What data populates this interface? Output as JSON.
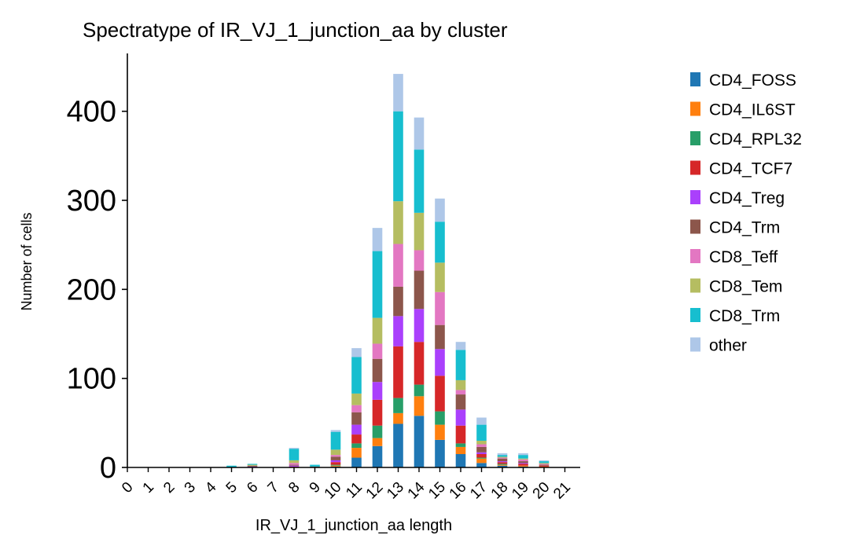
{
  "chart_data": {
    "type": "bar",
    "stacked": true,
    "title": "Spectratype of IR_VJ_1_junction_aa by cluster",
    "xlabel": "IR_VJ_1_junction_aa length",
    "ylabel": "Number of cells",
    "ylim": [
      0,
      465
    ],
    "yticks": [
      0,
      100,
      200,
      300,
      400
    ],
    "grid": false,
    "legend_position": "right",
    "categories": [
      "0",
      "1",
      "2",
      "3",
      "4",
      "5",
      "6",
      "7",
      "8",
      "9",
      "10",
      "11",
      "12",
      "13",
      "14",
      "15",
      "16",
      "17",
      "18",
      "19",
      "20",
      "21"
    ],
    "series": [
      {
        "name": "CD4_FOSS",
        "color": "#1f77b4",
        "values": [
          0,
          0,
          0,
          0,
          0,
          0,
          0,
          0,
          0,
          0,
          1,
          11,
          24,
          49,
          58,
          31,
          15,
          5,
          2,
          1,
          0,
          0
        ]
      },
      {
        "name": "CD4_IL6ST",
        "color": "#ff7f0e",
        "values": [
          0,
          0,
          0,
          0,
          0,
          0,
          0,
          0,
          0,
          0,
          1,
          11,
          9,
          12,
          22,
          17,
          8,
          5,
          1,
          1,
          1,
          0
        ]
      },
      {
        "name": "CD4_RPL32",
        "color": "#279e68",
        "values": [
          0,
          0,
          0,
          0,
          0,
          0,
          0,
          0,
          0,
          0,
          1,
          5,
          14,
          17,
          13,
          15,
          4,
          1,
          1,
          0,
          0,
          0
        ]
      },
      {
        "name": "CD4_TCF7",
        "color": "#d62728",
        "values": [
          0,
          0,
          0,
          0,
          0,
          0,
          0,
          0,
          1,
          0,
          3,
          10,
          29,
          58,
          48,
          40,
          20,
          4,
          2,
          2,
          1,
          0
        ]
      },
      {
        "name": "CD4_Treg",
        "color": "#aa40fc",
        "values": [
          0,
          0,
          0,
          0,
          0,
          0,
          1,
          0,
          1,
          0,
          2,
          11,
          20,
          34,
          37,
          30,
          18,
          2,
          1,
          1,
          0,
          0
        ]
      },
      {
        "name": "CD4_Trm",
        "color": "#8c564b",
        "values": [
          0,
          0,
          0,
          0,
          0,
          0,
          1,
          0,
          1,
          1,
          4,
          14,
          26,
          33,
          43,
          27,
          17,
          6,
          3,
          2,
          1,
          0
        ]
      },
      {
        "name": "CD8_Teff",
        "color": "#e377c2",
        "values": [
          0,
          0,
          0,
          0,
          0,
          0,
          0,
          0,
          2,
          0,
          2,
          8,
          17,
          48,
          23,
          37,
          5,
          3,
          1,
          2,
          1,
          0
        ]
      },
      {
        "name": "CD8_Tem",
        "color": "#b5bd61",
        "values": [
          0,
          0,
          0,
          0,
          0,
          0,
          1,
          0,
          3,
          0,
          6,
          13,
          29,
          48,
          42,
          33,
          11,
          4,
          1,
          1,
          1,
          0
        ]
      },
      {
        "name": "CD8_Trm",
        "color": "#17becf",
        "values": [
          0,
          0,
          0,
          0,
          0,
          2,
          1,
          0,
          13,
          2,
          20,
          41,
          75,
          101,
          71,
          46,
          34,
          18,
          2,
          4,
          2,
          0
        ]
      },
      {
        "name": "other",
        "color": "#aec7e8",
        "values": [
          0,
          0,
          0,
          0,
          0,
          0,
          0,
          0,
          1,
          0,
          2,
          10,
          26,
          42,
          36,
          26,
          9,
          8,
          2,
          2,
          1,
          0
        ]
      }
    ]
  }
}
